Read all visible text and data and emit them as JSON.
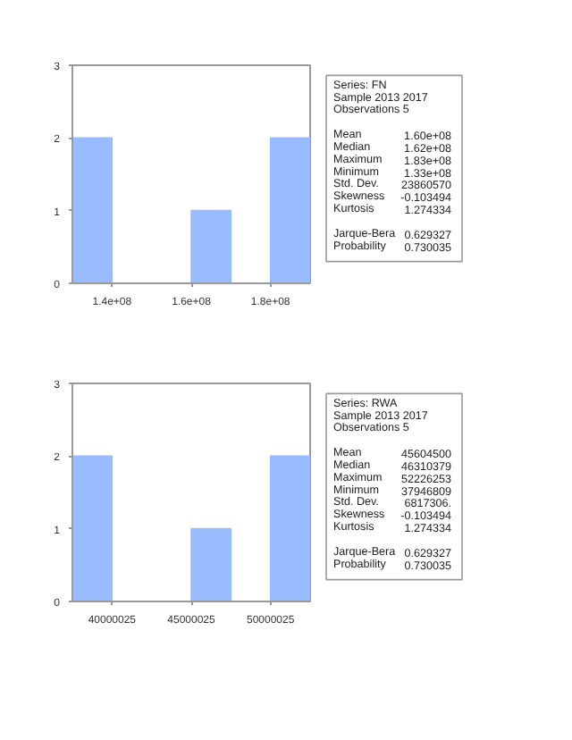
{
  "chart_data": [
    {
      "type": "histogram",
      "bins": [
        130000000,
        140000000,
        150000000,
        160000000,
        170000000,
        180000000,
        190000000
      ],
      "values": [
        2,
        0,
        0,
        1,
        0,
        2
      ],
      "color": "#99bbff",
      "xlim": [
        130000000,
        190000000
      ],
      "xticks": [
        {
          "value": 140000000,
          "label": "1.4e+08"
        },
        {
          "value": 160000000,
          "label": "1.6e+08"
        },
        {
          "value": 180000000,
          "label": "1.8e+08"
        }
      ],
      "ylim": [
        0,
        3
      ],
      "yticks": [
        0,
        1,
        2,
        3
      ],
      "grid": false,
      "annotations": [
        "Series: FN",
        "Sample 2013 2017",
        "Observations 5",
        "Mean",
        "1.60e+08",
        "Median",
        "1.62e+08",
        "Maximum",
        "1.83e+08",
        "Minimum",
        "1.33e+08",
        "Std. Dev.",
        "23860570",
        "Skewness",
        "-0.103494",
        "Kurtosis",
        "1.274334",
        "Jarque-Bera",
        "0.629327",
        "Probability",
        "0.730035"
      ]
    },
    {
      "type": "histogram",
      "bins": [
        37500025,
        40000025,
        42500025,
        45000025,
        47500025,
        50000025,
        52500025
      ],
      "values": [
        2,
        0,
        0,
        1,
        0,
        2
      ],
      "color": "#99bbff",
      "xlim": [
        37500025,
        52500025
      ],
      "xticks": [
        40000025,
        45000025,
        50000025
      ],
      "ylim": [
        0,
        3
      ],
      "yticks": [
        0,
        1,
        2,
        3
      ],
      "grid": false,
      "annotations": [
        "Series: RWA",
        "Sample 2013 2017",
        "Observations 5",
        "Mean",
        "45604500",
        "Median",
        "46310379",
        "Maximum",
        "52226253",
        "Minimum",
        "37946809",
        "Std. Dev.",
        "6817306.",
        "Skewness",
        "-0.103494",
        "Kurtosis",
        "1.274334",
        "Jarque-Bera",
        "0.629327",
        "Probability",
        "0.730035"
      ]
    }
  ]
}
